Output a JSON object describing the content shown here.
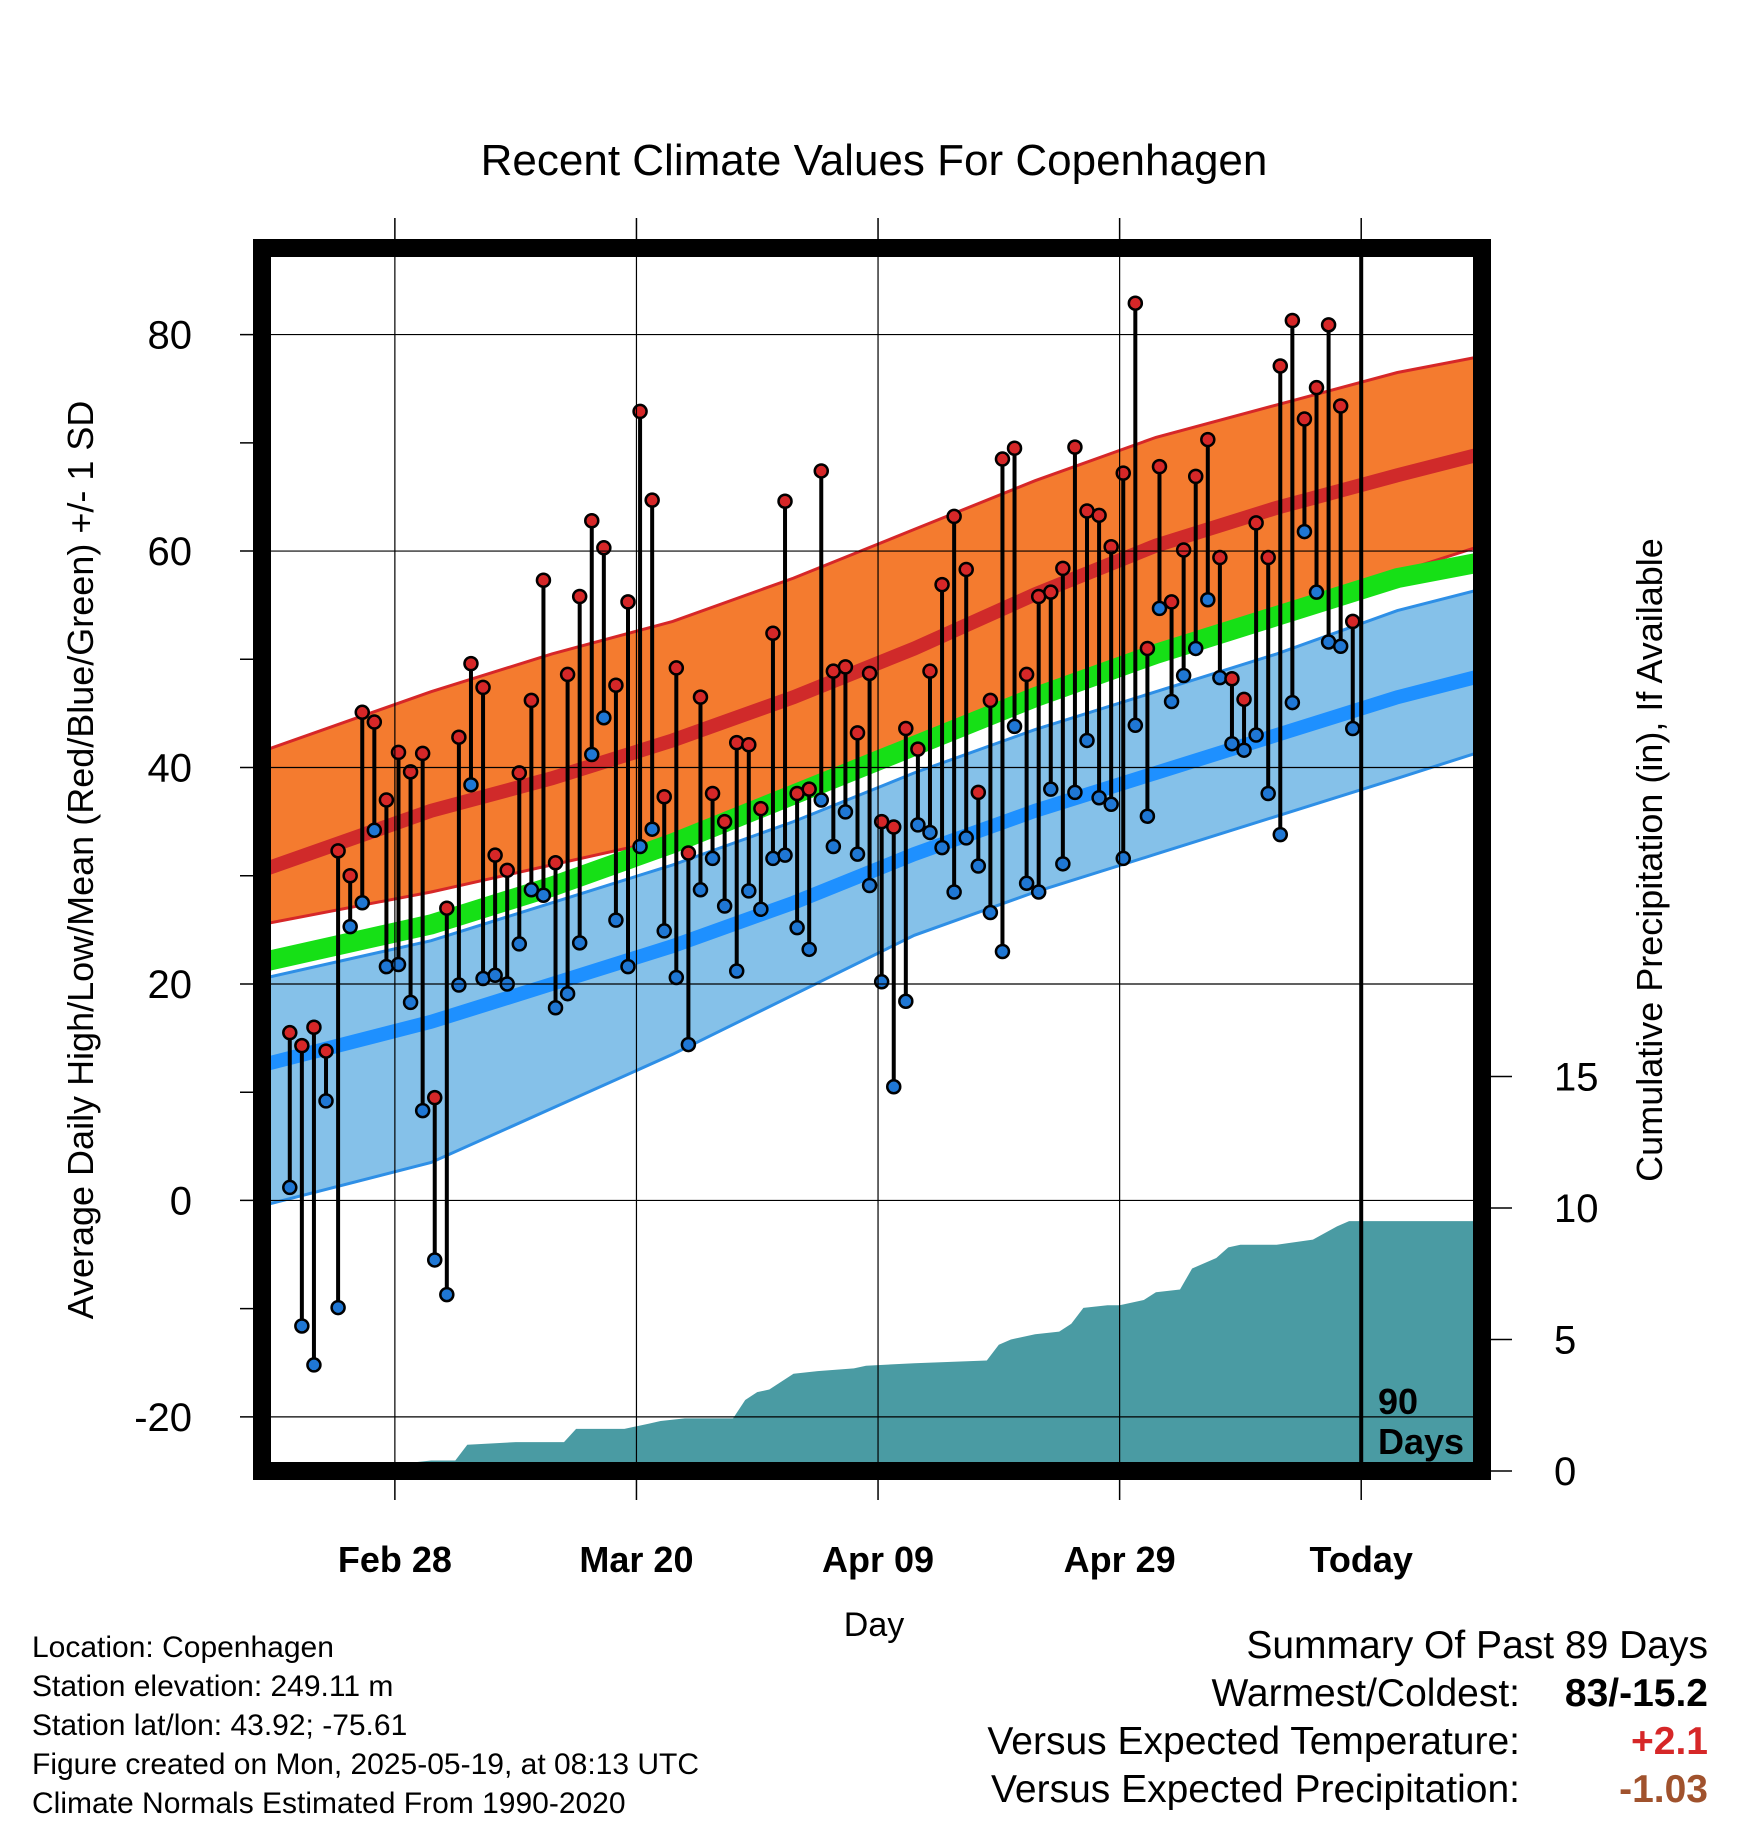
{
  "chart_data": {
    "type": "line",
    "title": "Recent Climate Values For Copenhagen",
    "xlabel": "Day",
    "ylabel_left": "Average Daily High/Low/Mean (Red/Blue/Green) +/- 1 SD",
    "ylabel_right": "Cumulative Precipitation (in), If Available",
    "x_ticks": [
      "Feb 28",
      "Mar 20",
      "Apr 09",
      "Apr 29",
      "Today"
    ],
    "x_tick_days": [
      17,
      37,
      57,
      77,
      97
    ],
    "xlim": [
      6,
      107
    ],
    "ylim_left": [
      -25,
      88
    ],
    "ylim_right": [
      0,
      46.5
    ],
    "y_ticks_left": [
      80,
      60,
      40,
      20,
      0,
      -20
    ],
    "y_ticks_right": [
      15,
      10,
      5,
      0
    ],
    "today_marker": {
      "day": 97,
      "label_line1": "90",
      "label_line2": "Days"
    },
    "normal_high": {
      "days": [
        6,
        20,
        30,
        40,
        50,
        60,
        70,
        80,
        90,
        100,
        107
      ],
      "mean": [
        30.5,
        36.0,
        39.0,
        42.5,
        46.5,
        51.0,
        56.0,
        60.5,
        64.0,
        67.0,
        69.0
      ],
      "upper": [
        41.5,
        47.0,
        50.5,
        53.5,
        57.5,
        62.0,
        66.5,
        70.5,
        73.5,
        76.5,
        78.0
      ],
      "lower": [
        25.5,
        28.5,
        31.0,
        33.5,
        37.0,
        41.5,
        46.0,
        50.5,
        54.5,
        58.0,
        60.5
      ]
    },
    "normal_mean": {
      "days": [
        6,
        20,
        30,
        40,
        50,
        60,
        70,
        80,
        90,
        100,
        107
      ],
      "values": [
        22.0,
        25.5,
        29.0,
        33.0,
        37.5,
        42.0,
        46.5,
        50.5,
        54.0,
        57.5,
        59.0
      ]
    },
    "normal_low": {
      "days": [
        6,
        20,
        30,
        40,
        50,
        60,
        70,
        80,
        90,
        100,
        107
      ],
      "mean": [
        12.5,
        16.5,
        20.0,
        23.5,
        27.5,
        32.0,
        36.0,
        39.5,
        43.0,
        46.5,
        48.5
      ],
      "upper": [
        20.5,
        24.0,
        27.5,
        31.0,
        35.0,
        39.5,
        43.5,
        47.0,
        50.5,
        54.5,
        56.5
      ],
      "lower": [
        -0.5,
        3.5,
        8.5,
        13.5,
        19.0,
        24.5,
        28.5,
        32.0,
        35.5,
        39.0,
        41.5
      ]
    },
    "series": [
      {
        "name": "High",
        "color": "#d62728",
        "values": [
          15.5,
          14.3,
          16.0,
          13.8,
          32.3,
          30.0,
          45.1,
          44.2,
          37.0,
          41.4,
          39.6,
          41.3,
          9.5,
          27.0,
          42.8,
          49.6,
          47.4,
          31.9,
          30.5,
          39.5,
          46.2,
          57.3,
          31.2,
          48.6,
          55.8,
          62.8,
          60.3,
          47.6,
          55.3,
          72.9,
          64.7,
          37.3,
          49.2,
          32.1,
          46.5,
          37.6,
          35.0,
          42.3,
          42.1,
          36.2,
          52.4,
          64.6,
          37.6,
          38.0,
          67.4,
          48.9,
          49.3,
          43.2,
          48.7,
          35.0,
          34.5,
          43.6,
          41.7,
          48.9,
          56.9,
          63.2,
          58.3,
          37.7,
          46.2,
          68.5,
          69.5,
          48.6,
          55.8,
          56.2,
          58.4,
          69.6,
          63.7,
          63.3,
          60.4,
          67.2,
          82.9,
          51.0,
          67.8,
          55.3,
          60.1,
          66.9,
          70.3,
          59.4,
          48.2,
          46.3,
          62.6,
          59.4,
          77.1,
          81.3,
          72.2,
          75.1,
          80.9,
          73.4,
          53.5
        ]
      },
      {
        "name": "Low",
        "color": "#1f77d4",
        "values": [
          1.2,
          -11.6,
          -15.2,
          9.2,
          -9.9,
          25.3,
          27.5,
          34.2,
          21.6,
          21.8,
          18.3,
          8.3,
          -5.5,
          -8.7,
          19.9,
          38.4,
          20.5,
          20.8,
          20.0,
          23.7,
          28.7,
          28.2,
          17.8,
          19.1,
          23.8,
          41.2,
          44.6,
          25.9,
          21.6,
          32.7,
          34.3,
          24.9,
          20.6,
          14.4,
          28.7,
          31.6,
          27.2,
          21.2,
          28.6,
          26.9,
          31.6,
          31.9,
          25.2,
          23.2,
          37.0,
          32.7,
          35.9,
          32.0,
          29.1,
          20.2,
          10.5,
          18.4,
          34.7,
          34.0,
          32.6,
          28.5,
          33.5,
          30.9,
          26.6,
          23.0,
          43.8,
          29.3,
          28.5,
          38.0,
          31.1,
          37.7,
          42.5,
          37.2,
          36.6,
          31.6,
          43.9,
          35.5,
          54.7,
          46.1,
          48.5,
          51.0,
          55.5,
          48.3,
          42.2,
          41.6,
          43.0,
          37.6,
          33.8,
          46.0,
          61.8,
          56.2,
          51.6,
          51.2,
          43.6
        ]
      },
      {
        "name": "Cumulative Precipitation",
        "color": "#4a9ba3",
        "days": [
          6,
          16,
          17,
          18,
          20,
          22,
          23,
          27,
          31,
          32,
          36,
          38,
          39,
          41,
          45,
          46,
          47,
          48,
          50,
          52,
          55,
          56,
          60,
          66,
          67,
          68,
          70,
          72,
          73,
          74,
          76,
          77,
          79,
          80,
          82,
          83,
          85,
          86,
          87,
          88,
          90,
          93,
          95,
          96,
          107
        ],
        "values": [
          0,
          0,
          0.2,
          0.3,
          0.4,
          0.4,
          1.0,
          1.1,
          1.1,
          1.6,
          1.6,
          1.8,
          1.9,
          2.0,
          2.0,
          2.7,
          3.0,
          3.1,
          3.7,
          3.8,
          3.9,
          4.0,
          4.1,
          4.2,
          4.8,
          5.0,
          5.2,
          5.3,
          5.6,
          6.2,
          6.3,
          6.3,
          6.5,
          6.8,
          6.9,
          7.7,
          8.1,
          8.5,
          8.6,
          8.6,
          8.6,
          8.8,
          9.3,
          9.5,
          9.5
        ]
      }
    ]
  },
  "info": {
    "location": "Location: Copenhagen",
    "elevation": "Station elevation: 249.11 m",
    "latlon": "Station lat/lon: 43.92; -75.61",
    "created": "Figure created on Mon, 2025-05-19, at 08:13 UTC",
    "normals": "Climate Normals Estimated From 1990-2020"
  },
  "summary": {
    "heading": "Summary Of Past 89 Days",
    "warmest_coldest_label": "Warmest/Coldest:",
    "warmest_coldest_value": "83/-15.2",
    "temp_label": "Versus Expected Temperature:",
    "temp_value": "+2.1",
    "temp_color": "#d62728",
    "precip_label": "Versus Expected Precipitation:",
    "precip_value": "-1.03",
    "precip_color": "#a0522d"
  }
}
